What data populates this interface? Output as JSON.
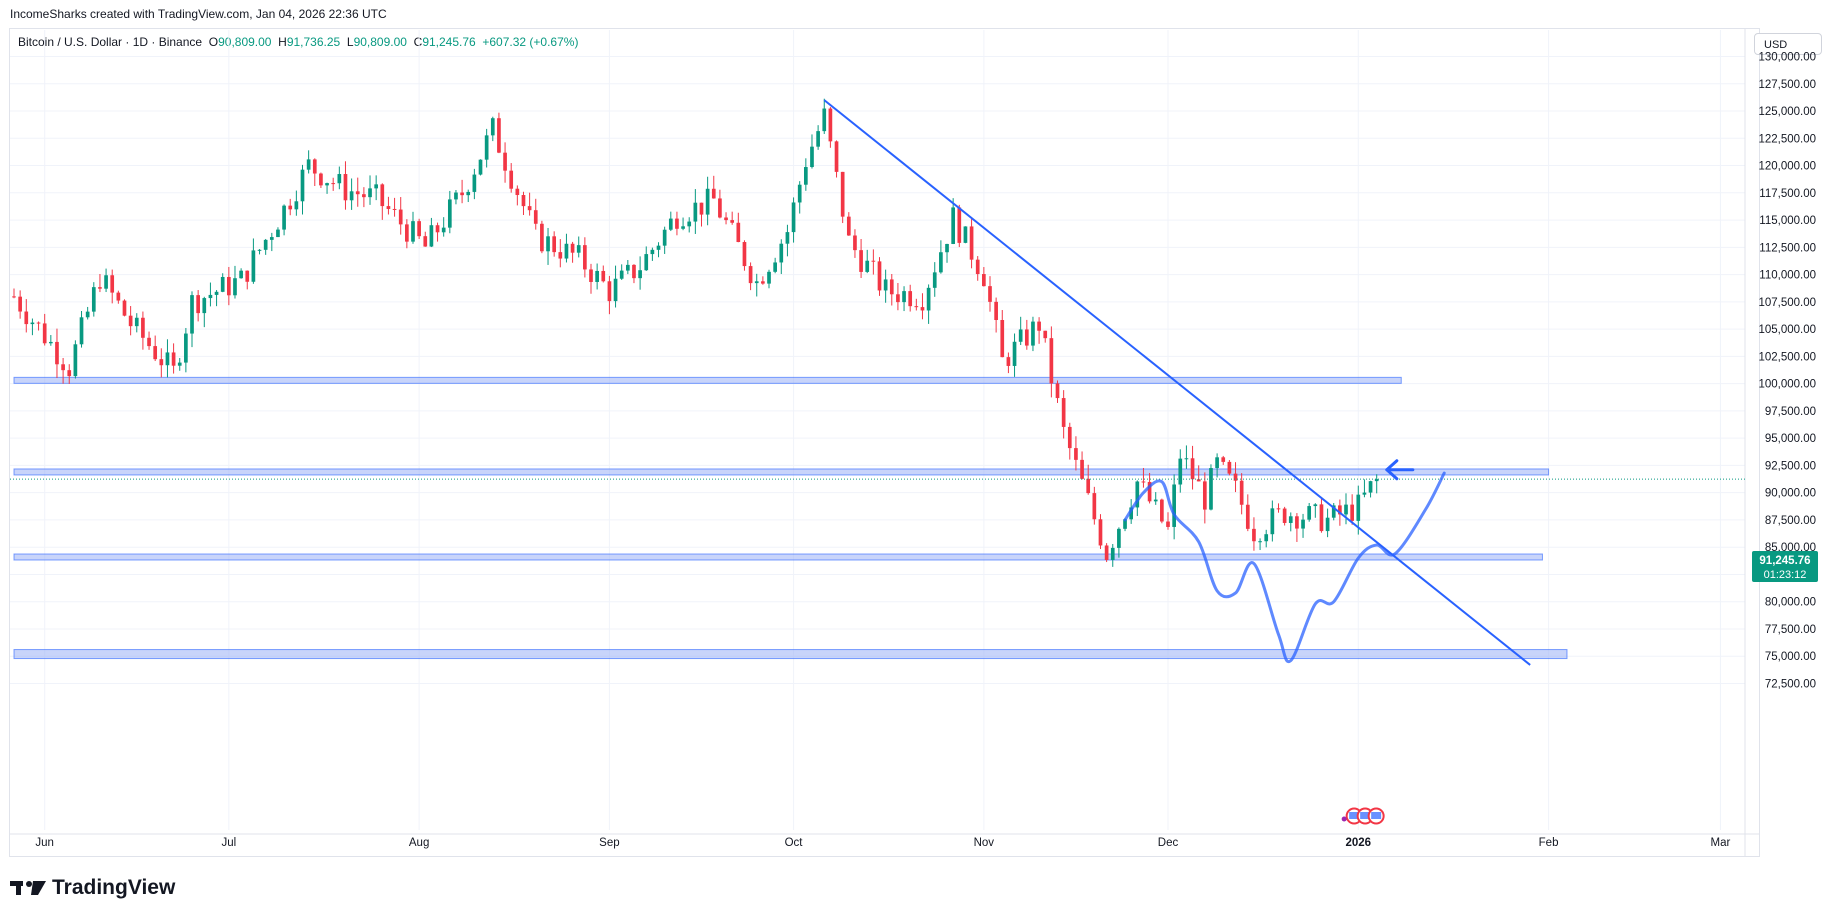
{
  "credit": "IncomeSharks created with TradingView.com, Jan 04, 2026 22:36 UTC",
  "legend": {
    "symbol": "Bitcoin / U.S. Dollar · 1D · Binance",
    "o_label": "O",
    "o": "90,809.00",
    "h_label": "H",
    "h": "91,736.25",
    "l_label": "L",
    "l": "90,809.00",
    "c_label": "C",
    "c": "91,245.76",
    "change": "+607.32 (+0.67%)"
  },
  "currency": "USD",
  "price_tag": {
    "price": "91,245.76",
    "countdown": "01:23:12"
  },
  "brand": "TradingView",
  "colors": {
    "up": "#089981",
    "down": "#f23645",
    "drawing": "#2962ff",
    "zone": "#9bb1f5"
  },
  "chart_data": {
    "type": "candlestick",
    "title": "",
    "y_axis": {
      "min": 72500,
      "max": 130000,
      "tick_step": 2500,
      "ticks": [
        "130,000.00",
        "127,500.00",
        "125,000.00",
        "122,500.00",
        "120,000.00",
        "117,500.00",
        "115,000.00",
        "112,500.00",
        "110,000.00",
        "107,500.00",
        "105,000.00",
        "102,500.00",
        "100,000.00",
        "97,500.00",
        "95,000.00",
        "92,500.00",
        "90,000.00",
        "87,500.00",
        "85,000.00",
        "82,500.00",
        "80,000.00",
        "77,500.00",
        "75,000.00",
        "72,500.00"
      ]
    },
    "x_axis": {
      "start": "2025-05-27",
      "end": "2026-03-05",
      "ticks": [
        {
          "date": "2025-06-01",
          "label": "Jun"
        },
        {
          "date": "2025-07-01",
          "label": "Jul"
        },
        {
          "date": "2025-08-01",
          "label": "Aug"
        },
        {
          "date": "2025-09-01",
          "label": "Sep"
        },
        {
          "date": "2025-10-01",
          "label": "Oct"
        },
        {
          "date": "2025-11-01",
          "label": "Nov"
        },
        {
          "date": "2025-12-01",
          "label": "Dec"
        },
        {
          "date": "2026-01-01",
          "label": "2026"
        },
        {
          "date": "2026-02-01",
          "label": "Feb"
        },
        {
          "date": "2026-03-01",
          "label": "Mar"
        }
      ]
    },
    "grid": true,
    "closes": [
      {
        "date": "2025-05-27",
        "close": 108000
      },
      {
        "date": "2025-06-05",
        "close": 101500
      },
      {
        "date": "2025-06-10",
        "close": 109800
      },
      {
        "date": "2025-06-15",
        "close": 105500
      },
      {
        "date": "2025-06-22",
        "close": 101000
      },
      {
        "date": "2025-06-25",
        "close": 107500
      },
      {
        "date": "2025-07-03",
        "close": 109500
      },
      {
        "date": "2025-07-10",
        "close": 116000
      },
      {
        "date": "2025-07-14",
        "close": 120000
      },
      {
        "date": "2025-07-20",
        "close": 117800
      },
      {
        "date": "2025-07-25",
        "close": 117000
      },
      {
        "date": "2025-08-02",
        "close": 112500
      },
      {
        "date": "2025-08-08",
        "close": 117500
      },
      {
        "date": "2025-08-13",
        "close": 123300
      },
      {
        "date": "2025-08-20",
        "close": 113500
      },
      {
        "date": "2025-08-27",
        "close": 111500
      },
      {
        "date": "2025-09-01",
        "close": 108500
      },
      {
        "date": "2025-09-06",
        "close": 110800
      },
      {
        "date": "2025-09-12",
        "close": 115500
      },
      {
        "date": "2025-09-18",
        "close": 116800
      },
      {
        "date": "2025-09-25",
        "close": 109300
      },
      {
        "date": "2025-09-30",
        "close": 114000
      },
      {
        "date": "2025-10-03",
        "close": 120500
      },
      {
        "date": "2025-10-06",
        "close": 124500
      },
      {
        "date": "2025-10-10",
        "close": 113000
      },
      {
        "date": "2025-10-16",
        "close": 108500
      },
      {
        "date": "2025-10-22",
        "close": 108000
      },
      {
        "date": "2025-10-27",
        "close": 115200
      },
      {
        "date": "2025-11-01",
        "close": 110000
      },
      {
        "date": "2025-11-04",
        "close": 102000
      },
      {
        "date": "2025-11-10",
        "close": 105500
      },
      {
        "date": "2025-11-14",
        "close": 95500
      },
      {
        "date": "2025-11-21",
        "close": 84500
      },
      {
        "date": "2025-11-26",
        "close": 91000
      },
      {
        "date": "2025-12-01",
        "close": 86500
      },
      {
        "date": "2025-12-03",
        "close": 93500
      },
      {
        "date": "2025-12-07",
        "close": 89500
      },
      {
        "date": "2025-12-09",
        "close": 92500
      },
      {
        "date": "2025-12-12",
        "close": 90200
      },
      {
        "date": "2025-12-15",
        "close": 86500
      },
      {
        "date": "2025-12-20",
        "close": 88200
      },
      {
        "date": "2025-12-27",
        "close": 87500
      },
      {
        "date": "2026-01-01",
        "close": 88700
      },
      {
        "date": "2026-01-04",
        "close": 91245.76
      }
    ],
    "horizontal_zones": [
      {
        "price": 100300,
        "start": "2025-05-27",
        "end": "2026-01-08"
      },
      {
        "price": 91900,
        "start": "2025-05-27",
        "end": "2026-02-01"
      },
      {
        "price": 84100,
        "start": "2025-05-27",
        "end": "2026-01-31"
      },
      {
        "price": 75200,
        "start": "2025-05-27",
        "end": "2026-02-04"
      }
    ],
    "trendline": {
      "from": {
        "date": "2025-10-06",
        "price": 126000
      },
      "to": {
        "date": "2026-01-29",
        "price": 74200
      }
    },
    "projection_path": [
      {
        "date": "2025-11-24",
        "price": 87500
      },
      {
        "date": "2025-11-27",
        "price": 90000
      },
      {
        "date": "2025-11-30",
        "price": 91000
      },
      {
        "date": "2025-12-02",
        "price": 88000
      },
      {
        "date": "2025-12-06",
        "price": 85500
      },
      {
        "date": "2025-12-09",
        "price": 81000
      },
      {
        "date": "2025-12-12",
        "price": 80800
      },
      {
        "date": "2025-12-15",
        "price": 83500
      },
      {
        "date": "2025-12-19",
        "price": 77000
      },
      {
        "date": "2025-12-21",
        "price": 74600
      },
      {
        "date": "2025-12-25",
        "price": 79800
      },
      {
        "date": "2025-12-28",
        "price": 80000
      },
      {
        "date": "2026-01-01",
        "price": 84000
      },
      {
        "date": "2026-01-04",
        "price": 85200
      },
      {
        "date": "2026-01-07",
        "price": 84400
      },
      {
        "date": "2026-01-12",
        "price": 88500
      },
      {
        "date": "2026-01-15",
        "price": 91800
      }
    ],
    "arrow": {
      "date": "2026-01-05",
      "price": 92100,
      "direction": "left"
    }
  }
}
